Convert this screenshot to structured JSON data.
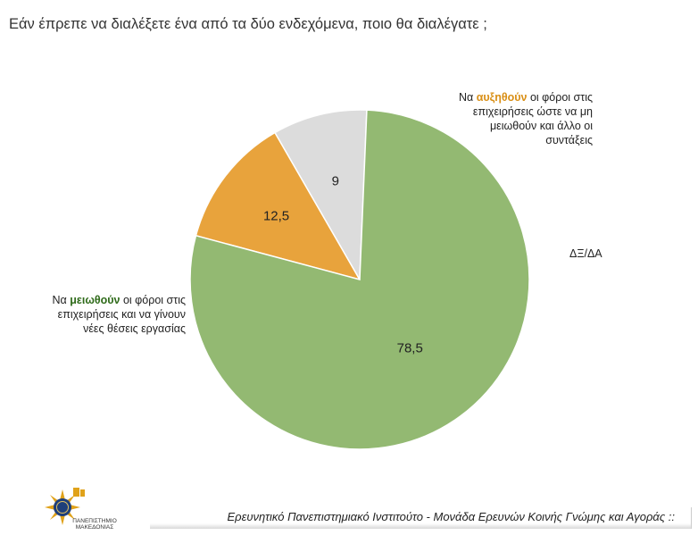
{
  "title": "Εάν έπρεπε να διαλέξετε ένα από τα δύο ενδεχόμενα, ποιο θα διαλέγατε ;",
  "chart_data": {
    "type": "pie",
    "slices": [
      {
        "label_pre": "Να ",
        "label_kw": "αυξηθούν",
        "label_post": " οι φόροι στις επιχειρήσεις ώστε να μη μειωθούν και άλλο οι συντάξεις",
        "value": 12.5,
        "display": "12,5",
        "color": "#e8a33c"
      },
      {
        "label": "ΔΞ/ΔΑ",
        "value": 9,
        "display": "9",
        "color": "#dcdcdc"
      },
      {
        "label_pre": "Να ",
        "label_kw": "μειωθούν",
        "label_post": " οι φόροι στις επιχειρήσεις και να γίνουν νέες θέσεις εργασίας",
        "value": 78.5,
        "display": "78,5",
        "color": "#93b972"
      }
    ]
  },
  "footer": "Ερευνητικό Πανεπιστημιακό Ινστιτούτο - Μονάδα Ερευνών Κοινής Γνώμης και Αγοράς ::",
  "logo": {
    "line1": "ΠΑΝΕΠΙΣΤΗΜΙΟ",
    "line2": "ΜΑΚΕΔΟΝΙΑΣ"
  }
}
